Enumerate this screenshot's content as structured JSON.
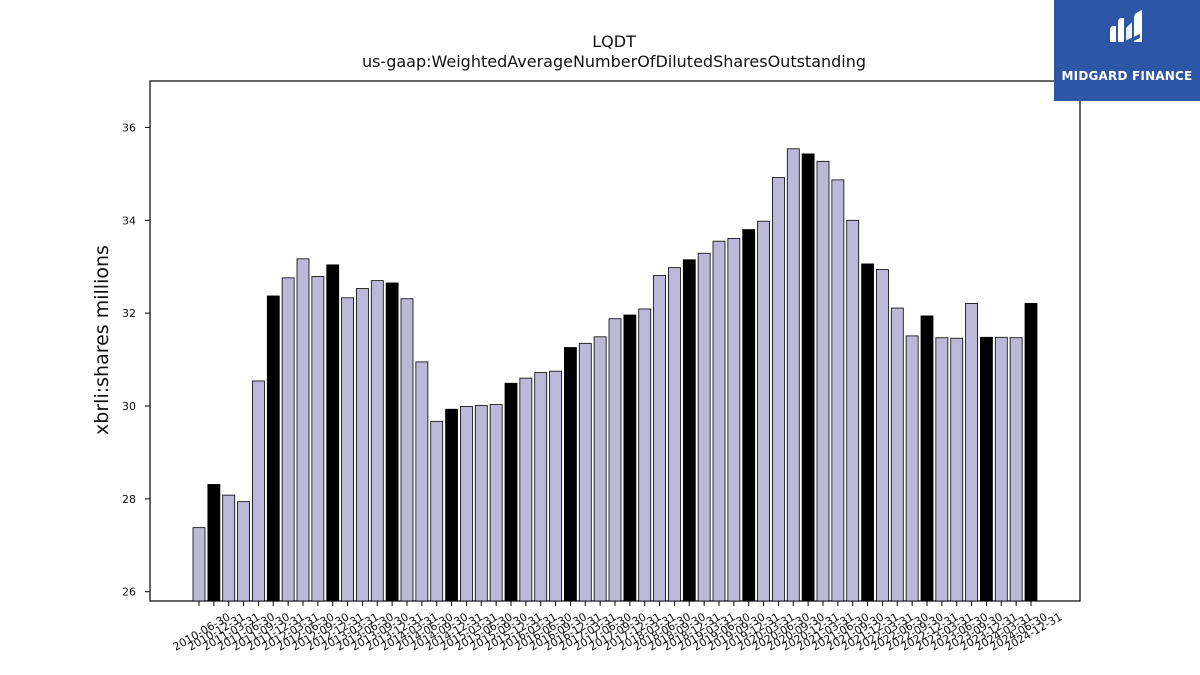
{
  "chart_data": {
    "type": "bar",
    "title": "LQDT",
    "subtitle": "us-gaap:WeightedAverageNumberOfDilutedSharesOutstanding",
    "xlabel": "",
    "ylabel": "xbrli:shares millions",
    "ylim": [
      25.8,
      37.0
    ],
    "yticks": [
      26,
      28,
      30,
      32,
      34,
      36
    ],
    "grid": false,
    "colors": {
      "quarter": "#bcb8d8",
      "annual": "#000000",
      "edge": "#000000"
    },
    "categories": [
      "2010-06-30",
      "2010-12-31",
      "2011-03-31",
      "2011-06-30",
      "2011-09-30",
      "2011-12-31",
      "2012-03-31",
      "2012-06-30",
      "2012-09-30",
      "2012-12-31",
      "2013-03-31",
      "2013-06-30",
      "2013-09-30",
      "2013-12-31",
      "2014-03-31",
      "2014-06-30",
      "2014-09-30",
      "2014-12-31",
      "2015-03-31",
      "2015-06-30",
      "2015-09-30",
      "2015-12-31",
      "2016-03-31",
      "2016-06-30",
      "2016-09-30",
      "2016-12-31",
      "2017-03-31",
      "2017-06-30",
      "2017-09-30",
      "2017-12-31",
      "2018-03-31",
      "2018-06-30",
      "2018-09-30",
      "2018-12-31",
      "2019-03-31",
      "2019-06-30",
      "2019-09-30",
      "2019-12-31",
      "2020-03-31",
      "2020-06-30",
      "2020-09-30",
      "2020-12-31",
      "2021-03-31",
      "2021-06-30",
      "2021-09-30",
      "2021-12-31",
      "2022-03-31",
      "2022-06-30",
      "2022-09-30",
      "2022-12-31",
      "2023-03-31",
      "2023-06-30",
      "2023-09-30",
      "2023-12-31",
      "2024-03-31",
      "2024-06-30",
      "2024-12-31"
    ],
    "annual": [
      false,
      true,
      false,
      false,
      false,
      true,
      false,
      false,
      false,
      true,
      false,
      false,
      false,
      true,
      false,
      false,
      false,
      true,
      false,
      false,
      false,
      true,
      false,
      false,
      false,
      true,
      false,
      false,
      false,
      true,
      false,
      false,
      false,
      true,
      false,
      false,
      false,
      true,
      false,
      false,
      false,
      true,
      false,
      false,
      false,
      true,
      false,
      false,
      false,
      true,
      false,
      false,
      false,
      true,
      false,
      false,
      true
    ],
    "values": [
      27.38,
      28.31,
      28.08,
      27.94,
      30.54,
      32.37,
      32.76,
      33.17,
      32.79,
      33.04,
      32.33,
      32.53,
      32.7,
      32.65,
      32.31,
      30.95,
      29.67,
      29.93,
      29.99,
      30.01,
      30.03,
      30.49,
      30.6,
      30.72,
      30.75,
      31.26,
      31.35,
      31.49,
      31.88,
      31.96,
      32.09,
      32.81,
      32.98,
      33.15,
      33.29,
      33.55,
      33.61,
      33.8,
      33.98,
      34.92,
      35.54,
      35.43,
      35.27,
      34.87,
      34.0,
      33.06,
      32.94,
      32.11,
      31.51,
      31.94,
      31.47,
      31.46,
      32.21,
      31.48,
      31.48,
      31.47,
      32.21
    ]
  },
  "logo": {
    "text": "MIDGARD FINANCE",
    "name": "midgard-finance-logo",
    "color": "#2e56a6"
  }
}
